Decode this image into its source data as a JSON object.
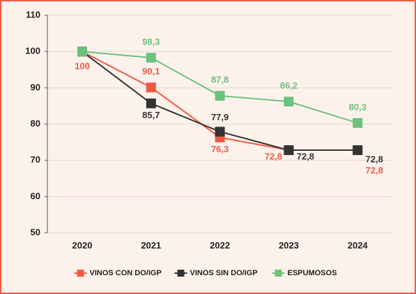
{
  "chart_data": {
    "type": "line",
    "categories": [
      "2020",
      "2021",
      "2022",
      "2023",
      "2024"
    ],
    "series": [
      {
        "name": "VINOS CON DO/IGP",
        "color": "#f05a44",
        "values": [
          100,
          90.1,
          76.3,
          72.8,
          72.8
        ],
        "value_labels": [
          "100",
          "90,1",
          "76,3",
          "72,8",
          "72,8"
        ]
      },
      {
        "name": "VINOS SIN DO/IGP",
        "color": "#333333",
        "values": [
          100,
          85.7,
          77.9,
          72.8,
          72.8
        ],
        "value_labels": [
          null,
          "85,7",
          "77,9",
          "72,8",
          "72,8"
        ]
      },
      {
        "name": "ESPUMOSOS",
        "color": "#6cc27c",
        "values": [
          100,
          98.3,
          87.8,
          86.2,
          80.3
        ],
        "value_labels": [
          null,
          "98,3",
          "87,8",
          "86,2",
          "80,3"
        ]
      }
    ],
    "ylim": [
      50,
      110
    ],
    "yticks": [
      50,
      60,
      70,
      80,
      90,
      100,
      110
    ],
    "grid": true,
    "legend": "bottom"
  }
}
